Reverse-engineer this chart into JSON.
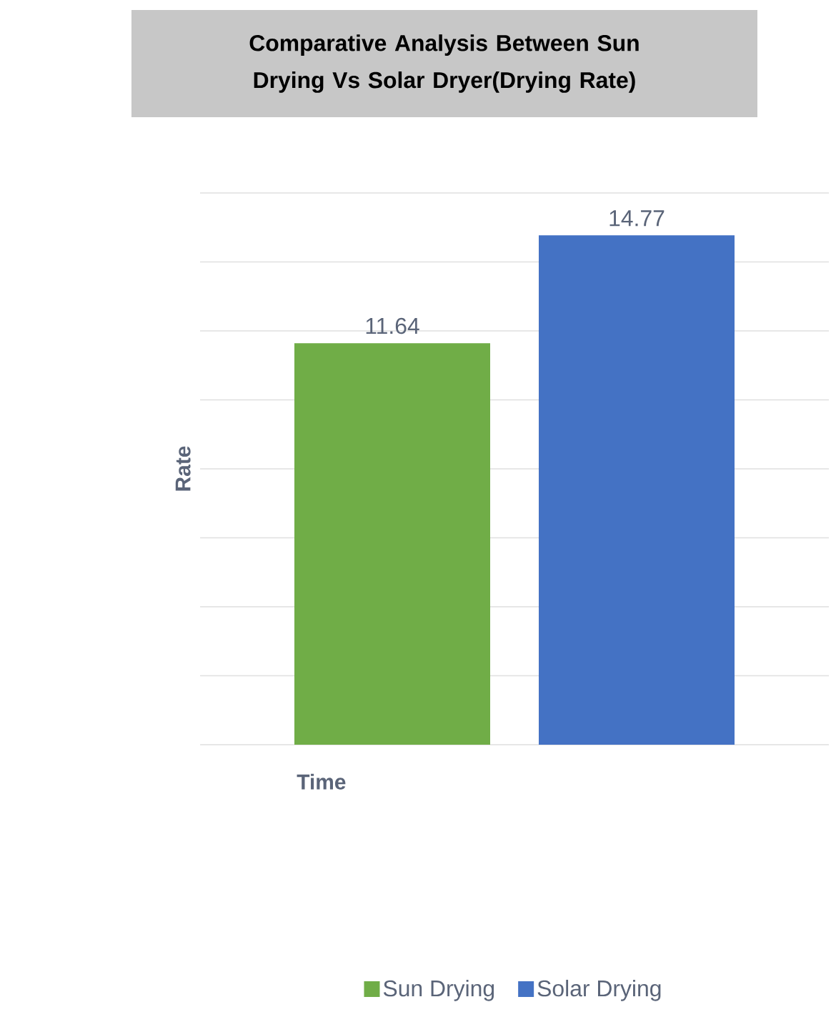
{
  "chart_data": {
    "type": "bar",
    "title": "Comparative Analysis Between Sun Drying Vs Solar Dryer(Drying Rate)",
    "xlabel": "Time",
    "ylabel": "Rate",
    "categories": [
      null
    ],
    "series": [
      {
        "name": "Sun Drying",
        "color": "#70ad47",
        "values": [
          11.64
        ]
      },
      {
        "name": "Solar Drying",
        "color": "#4472c4",
        "values": [
          14.77
        ]
      }
    ],
    "ylim": [
      0,
      16
    ],
    "yticks": [
      {
        "value": 0,
        "label": null
      },
      {
        "value": 2,
        "label": null
      },
      {
        "value": 4,
        "label": null
      },
      {
        "value": 6,
        "label": null
      },
      {
        "value": 8,
        "label": null
      },
      {
        "value": 10,
        "label": null
      },
      {
        "value": 12,
        "label": null
      },
      {
        "value": 14,
        "label": null
      },
      {
        "value": 16,
        "label": null
      }
    ],
    "grid": "y",
    "legend": "bottom",
    "data_labels": true
  }
}
